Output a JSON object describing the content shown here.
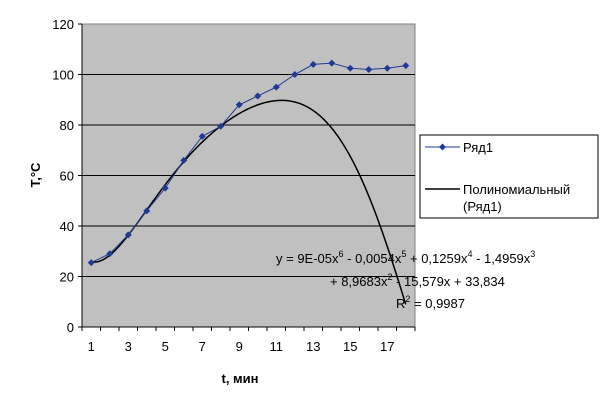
{
  "chart_data": {
    "type": "scatter",
    "xlabel": "t, мин",
    "ylabel": "Т,°С",
    "xlim": [
      0.5,
      18.5
    ],
    "ylim": [
      0,
      120
    ],
    "x_ticks": [
      "1",
      "3",
      "5",
      "7",
      "9",
      "11",
      "13",
      "15",
      "17"
    ],
    "y_ticks": [
      "0",
      "20",
      "40",
      "60",
      "80",
      "100",
      "120"
    ],
    "grid": "horizontal",
    "plot_background": "#c0c0c0",
    "series": [
      {
        "name": "Ряд1",
        "type": "line-markers",
        "color": "#1f3a93",
        "marker": "diamond",
        "x": [
          1,
          2,
          3,
          4,
          5,
          6,
          7,
          8,
          9,
          10,
          11,
          12,
          13,
          14,
          15,
          16,
          17,
          18
        ],
        "y": [
          25.5,
          29,
          36.5,
          46,
          55,
          66,
          75.5,
          79.5,
          88,
          91.5,
          95,
          100,
          104,
          104.5,
          102.5,
          102,
          102.5,
          103.5
        ]
      }
    ],
    "trendline": {
      "name_line1": "Полиномиальный",
      "name_line2": "(Ряд1)",
      "color": "#000000",
      "coefficients_high_to_low": [
        9e-05,
        -0.0054,
        0.1259,
        -1.4959,
        8.9683,
        -15.579,
        33.834
      ]
    },
    "equation": {
      "part1": "y = 9E-05x",
      "sup1": "6",
      "part2": " - 0,0054x",
      "sup2": "5",
      "part3": " + 0,1259x",
      "sup3": "4",
      "part4": " - 1,4959x",
      "sup4": "3",
      "line2a": "+ 8,9683x",
      "line2sup": "2",
      "line2b": " - 15,579x + 33,834",
      "r2a": "R",
      "r2sup": "2",
      "r2b": " = 0,9987"
    },
    "legend_position": "right"
  }
}
